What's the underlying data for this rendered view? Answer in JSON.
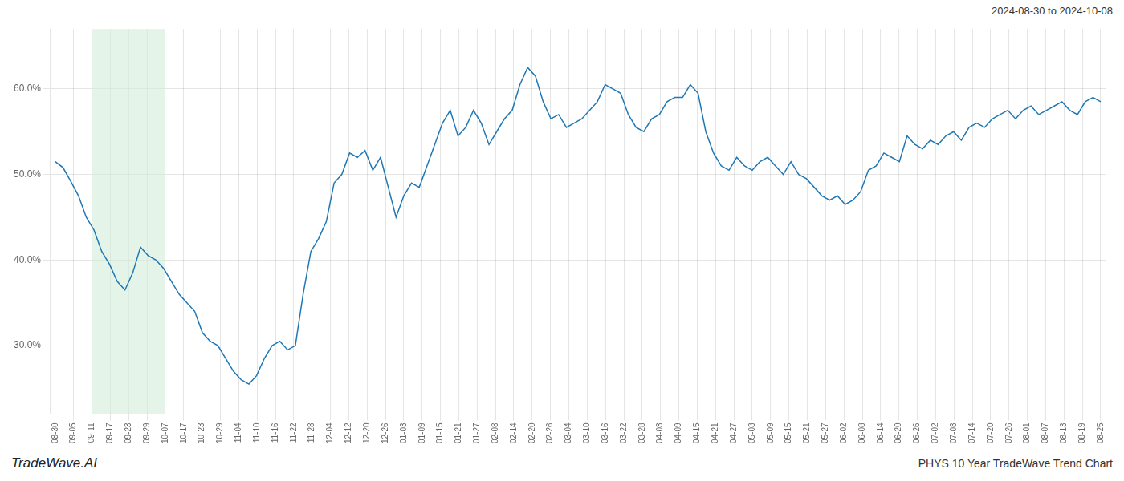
{
  "chart_data": {
    "type": "line",
    "color": "#1f77b4",
    "grid": true,
    "annotations": [
      "2024-08-30 to 2024-10-08",
      "TradeWave.AI",
      "PHYS 10 Year TradeWave Trend Chart"
    ],
    "shaded_range": {
      "from": 2,
      "to": 6,
      "color": "#d4edda"
    },
    "xlim": [
      -0.3,
      57.3
    ],
    "xticks": [
      {
        "value": 0,
        "label": "08-30"
      },
      {
        "value": 1,
        "label": "09-05"
      },
      {
        "value": 2,
        "label": "09-11"
      },
      {
        "value": 3,
        "label": "09-17"
      },
      {
        "value": 4,
        "label": "09-23"
      },
      {
        "value": 5,
        "label": "09-29"
      },
      {
        "value": 6,
        "label": "10-07"
      },
      {
        "value": 7,
        "label": "10-17"
      },
      {
        "value": 8,
        "label": "10-23"
      },
      {
        "value": 9,
        "label": "10-29"
      },
      {
        "value": 10,
        "label": "11-04"
      },
      {
        "value": 11,
        "label": "11-10"
      },
      {
        "value": 12,
        "label": "11-16"
      },
      {
        "value": 13,
        "label": "11-22"
      },
      {
        "value": 14,
        "label": "11-28"
      },
      {
        "value": 15,
        "label": "12-04"
      },
      {
        "value": 16,
        "label": "12-12"
      },
      {
        "value": 17,
        "label": "12-20"
      },
      {
        "value": 18,
        "label": "12-26"
      },
      {
        "value": 19,
        "label": "01-03"
      },
      {
        "value": 20,
        "label": "01-09"
      },
      {
        "value": 21,
        "label": "01-15"
      },
      {
        "value": 22,
        "label": "01-21"
      },
      {
        "value": 23,
        "label": "01-27"
      },
      {
        "value": 24,
        "label": "02-08"
      },
      {
        "value": 25,
        "label": "02-14"
      },
      {
        "value": 26,
        "label": "02-20"
      },
      {
        "value": 27,
        "label": "02-26"
      },
      {
        "value": 28,
        "label": "03-04"
      },
      {
        "value": 29,
        "label": "03-10"
      },
      {
        "value": 30,
        "label": "03-16"
      },
      {
        "value": 31,
        "label": "03-22"
      },
      {
        "value": 32,
        "label": "03-28"
      },
      {
        "value": 33,
        "label": "04-03"
      },
      {
        "value": 34,
        "label": "04-09"
      },
      {
        "value": 35,
        "label": "04-15"
      },
      {
        "value": 36,
        "label": "04-21"
      },
      {
        "value": 37,
        "label": "04-27"
      },
      {
        "value": 38,
        "label": "05-03"
      },
      {
        "value": 39,
        "label": "05-09"
      },
      {
        "value": 40,
        "label": "05-15"
      },
      {
        "value": 41,
        "label": "05-21"
      },
      {
        "value": 42,
        "label": "05-27"
      },
      {
        "value": 43,
        "label": "06-02"
      },
      {
        "value": 44,
        "label": "06-08"
      },
      {
        "value": 45,
        "label": "06-14"
      },
      {
        "value": 46,
        "label": "06-20"
      },
      {
        "value": 47,
        "label": "06-26"
      },
      {
        "value": 48,
        "label": "07-02"
      },
      {
        "value": 49,
        "label": "07-08"
      },
      {
        "value": 50,
        "label": "07-14"
      },
      {
        "value": 51,
        "label": "07-20"
      },
      {
        "value": 52,
        "label": "07-26"
      },
      {
        "value": 53,
        "label": "08-01"
      },
      {
        "value": 54,
        "label": "08-07"
      },
      {
        "value": 55,
        "label": "08-13"
      },
      {
        "value": 56,
        "label": "08-19"
      },
      {
        "value": 57,
        "label": "08-25"
      }
    ],
    "ylim": [
      22,
      67
    ],
    "yticks": [
      {
        "value": 30,
        "label": "30.0%"
      },
      {
        "value": 40,
        "label": "40.0%"
      },
      {
        "value": 50,
        "label": "50.0%"
      },
      {
        "value": 60,
        "label": "60.0%"
      }
    ],
    "x": [
      0,
      0.4222,
      0.8444,
      1.2667,
      1.6889,
      2.1111,
      2.5333,
      2.9556,
      3.3778,
      3.8,
      4.2222,
      4.6444,
      5.0667,
      5.4889,
      5.9111,
      6.3333,
      6.7556,
      7.1778,
      7.6,
      8.0222,
      8.4444,
      8.8667,
      9.2889,
      9.7111,
      10.1333,
      10.5556,
      10.9778,
      11.4,
      11.8222,
      12.2444,
      12.6667,
      13.0889,
      13.5111,
      13.9333,
      14.3556,
      14.7778,
      15.2,
      15.6222,
      16.0444,
      16.4667,
      16.8889,
      17.3111,
      17.7333,
      18.1556,
      18.5778,
      19,
      19.4222,
      19.8444,
      20.2667,
      20.6889,
      21.1111,
      21.5333,
      21.9556,
      22.3778,
      22.8,
      23.2222,
      23.6444,
      24.0667,
      24.4889,
      24.9111,
      25.3333,
      25.7556,
      26.1778,
      26.6,
      27.0222,
      27.4444,
      27.8667,
      28.2889,
      28.7111,
      29.1333,
      29.5556,
      29.9778,
      30.4,
      30.8222,
      31.2444,
      31.6667,
      32.0889,
      32.5111,
      32.9333,
      33.3556,
      33.7778,
      34.2,
      34.6222,
      35.0444,
      35.4667,
      35.8889,
      36.3111,
      36.7333,
      37.1556,
      37.5778,
      38,
      38.4222,
      38.8444,
      39.2667,
      39.6889,
      40.1111,
      40.5333,
      40.9556,
      41.3778,
      41.8,
      42.2222,
      42.6444,
      43.0667,
      43.4889,
      43.9111,
      44.3333,
      44.7556,
      45.1778,
      45.6,
      46.0222,
      46.4444,
      46.8667,
      47.2889,
      47.7111,
      48.1333,
      48.5556,
      48.9778,
      49.4,
      49.8222,
      50.2444,
      50.6667,
      51.0889,
      51.5111,
      51.9333,
      52.3556,
      52.7778,
      53.2,
      53.6222,
      54.0444,
      54.4667,
      54.8889,
      55.3111,
      55.7333,
      56.1556,
      56.5778,
      57
    ],
    "values": [
      51.5,
      50.8,
      49.2,
      47.5,
      45.0,
      43.5,
      41.0,
      39.5,
      37.5,
      36.5,
      38.5,
      41.5,
      40.5,
      40.0,
      39.0,
      37.5,
      36.0,
      35.0,
      34.0,
      31.5,
      30.5,
      30.0,
      28.5,
      27.0,
      26.0,
      25.5,
      26.5,
      28.5,
      30.0,
      30.5,
      29.5,
      30.0,
      36.0,
      41.0,
      42.5,
      44.5,
      49.0,
      50.0,
      52.5,
      52.0,
      52.8,
      50.5,
      52.0,
      48.5,
      45.0,
      47.5,
      49.0,
      48.5,
      51.0,
      53.5,
      56.0,
      57.5,
      54.5,
      55.5,
      57.5,
      56.0,
      53.5,
      55.0,
      56.5,
      57.5,
      60.5,
      62.5,
      61.5,
      58.5,
      56.5,
      57.0,
      55.5,
      56.0,
      56.5,
      57.5,
      58.5,
      60.5,
      60.0,
      59.5,
      57.0,
      55.5,
      55.0,
      56.5,
      57.0,
      58.5,
      59.0,
      59.0,
      60.5,
      59.5,
      55.0,
      52.5,
      51.0,
      50.5,
      52.0,
      51.0,
      50.5,
      51.5,
      52.0,
      51.0,
      50.0,
      51.5,
      50.0,
      49.5,
      48.5,
      47.5,
      47.0,
      47.5,
      46.5,
      47.0,
      48.0,
      50.5,
      51.0,
      52.5,
      52.0,
      51.5,
      54.5,
      53.5,
      53.0,
      54.0,
      53.5,
      54.5,
      55.0,
      54.0,
      55.5,
      56.0,
      55.5,
      56.5,
      57.0,
      57.5,
      56.5,
      57.5,
      58.0,
      57.0,
      57.5,
      58.0,
      58.5,
      57.5,
      57.0,
      58.5,
      59.0,
      58.5
    ]
  }
}
